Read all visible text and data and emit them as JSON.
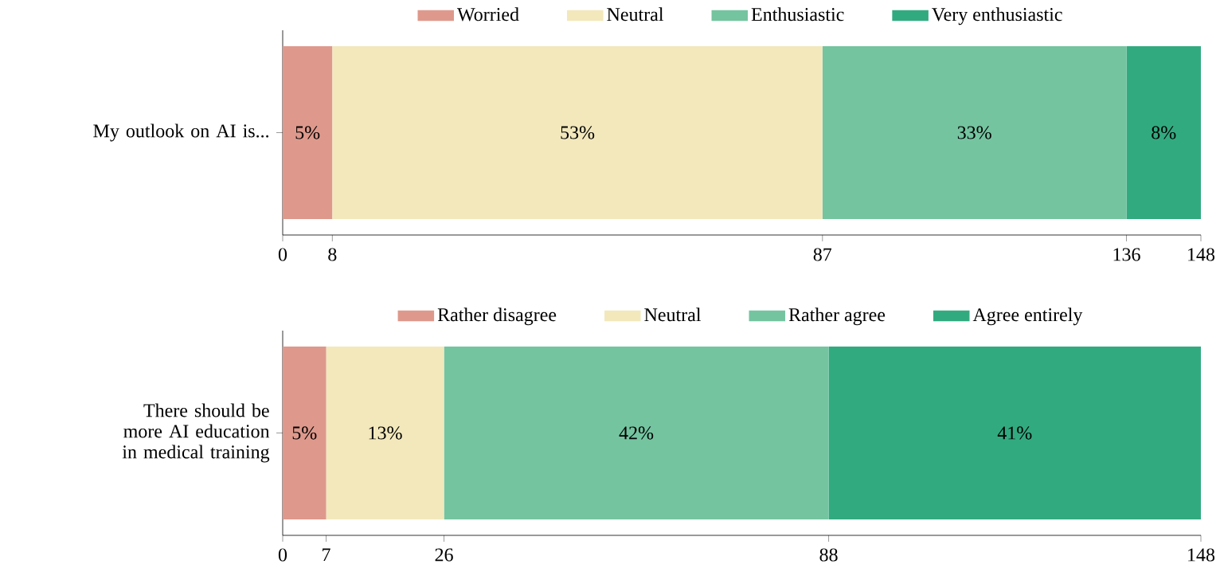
{
  "chart_data": [
    {
      "type": "bar",
      "orientation": "horizontal",
      "stacked": true,
      "legend": "top",
      "grid": false,
      "categories": [
        "My outlook on AI is..."
      ],
      "series": [
        {
          "name": "Worried",
          "color": "#de998c",
          "values": [
            8
          ]
        },
        {
          "name": "Neutral",
          "color": "#f2e8bc",
          "values": [
            79
          ]
        },
        {
          "name": "Enthusiastic",
          "color": "#74c4a0",
          "values": [
            49
          ]
        },
        {
          "name": "Very enthusiastic",
          "color": "#32aa80",
          "values": [
            12
          ]
        }
      ],
      "annotations": [
        "5%",
        "53%",
        "33%",
        "8%"
      ],
      "xlim": [
        0,
        148
      ],
      "xticks": [
        0,
        8,
        87,
        136,
        148
      ]
    },
    {
      "type": "bar",
      "orientation": "horizontal",
      "stacked": true,
      "legend": "top",
      "grid": false,
      "categories": [
        "There should be more AI education in medical training"
      ],
      "series": [
        {
          "name": "Rather disagree",
          "color": "#de998c",
          "values": [
            7
          ]
        },
        {
          "name": "Neutral",
          "color": "#f2e8bc",
          "values": [
            19
          ]
        },
        {
          "name": "Rather agree",
          "color": "#74c4a0",
          "values": [
            62
          ]
        },
        {
          "name": "Agree entirely",
          "color": "#32aa80",
          "values": [
            60
          ]
        }
      ],
      "annotations": [
        "5%",
        "13%",
        "42%",
        "41%"
      ],
      "xlim": [
        0,
        148
      ],
      "xticks": [
        0,
        7,
        26,
        88,
        148
      ]
    }
  ]
}
